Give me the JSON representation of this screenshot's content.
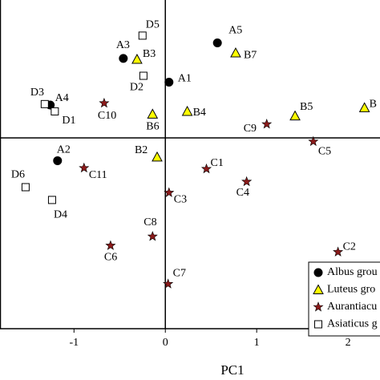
{
  "chart_data": {
    "type": "scatter",
    "xlabel": "PC1",
    "xlim": [
      -1.81,
      2.35
    ],
    "ylim": [
      -2.09,
      1.51
    ],
    "xticks": [
      -1,
      0,
      1,
      2
    ],
    "series": [
      {
        "name": "Albus grou",
        "marker": "circle",
        "color": "#000000",
        "labels": [
          "A5",
          "A3",
          "A1",
          "A4",
          "A2"
        ],
        "x": [
          0.57,
          -0.46,
          0.04,
          -1.26,
          -1.18
        ],
        "values": [
          1.04,
          0.87,
          0.61,
          0.36,
          -0.25
        ]
      },
      {
        "name": "Luteus gro",
        "marker": "triangle",
        "color": "#ffff00",
        "labels": [
          "B3",
          "B7",
          "B6",
          "B4",
          "B5",
          "B",
          "B2"
        ],
        "x": [
          -0.31,
          0.77,
          -0.14,
          0.24,
          1.42,
          2.18,
          -0.09
        ],
        "values": [
          0.86,
          0.93,
          0.26,
          0.29,
          0.24,
          0.33,
          -0.21
        ]
      },
      {
        "name": "Aurantiacu",
        "marker": "star",
        "color": "#8b1a1a",
        "labels": [
          "C10",
          "C9",
          "C5",
          "C11",
          "C1",
          "C4",
          "C3",
          "C8",
          "C6",
          "C2",
          "C7"
        ],
        "x": [
          -0.67,
          1.11,
          1.62,
          -0.89,
          0.45,
          0.89,
          0.04,
          -0.14,
          -0.6,
          1.89,
          0.03
        ],
        "values": [
          0.38,
          0.15,
          -0.04,
          -0.33,
          -0.34,
          -0.48,
          -0.6,
          -1.08,
          -1.18,
          -1.25,
          -1.6
        ]
      },
      {
        "name": "Asiaticus g",
        "marker": "square",
        "color": "#ffffff",
        "labels": [
          "D5",
          "D2",
          "D3",
          "D1",
          "D6",
          "D4"
        ],
        "x": [
          -0.25,
          -0.24,
          -1.32,
          -1.21,
          -1.53,
          -1.24
        ],
        "values": [
          1.12,
          0.68,
          0.37,
          0.29,
          -0.54,
          -0.68
        ]
      }
    ]
  }
}
